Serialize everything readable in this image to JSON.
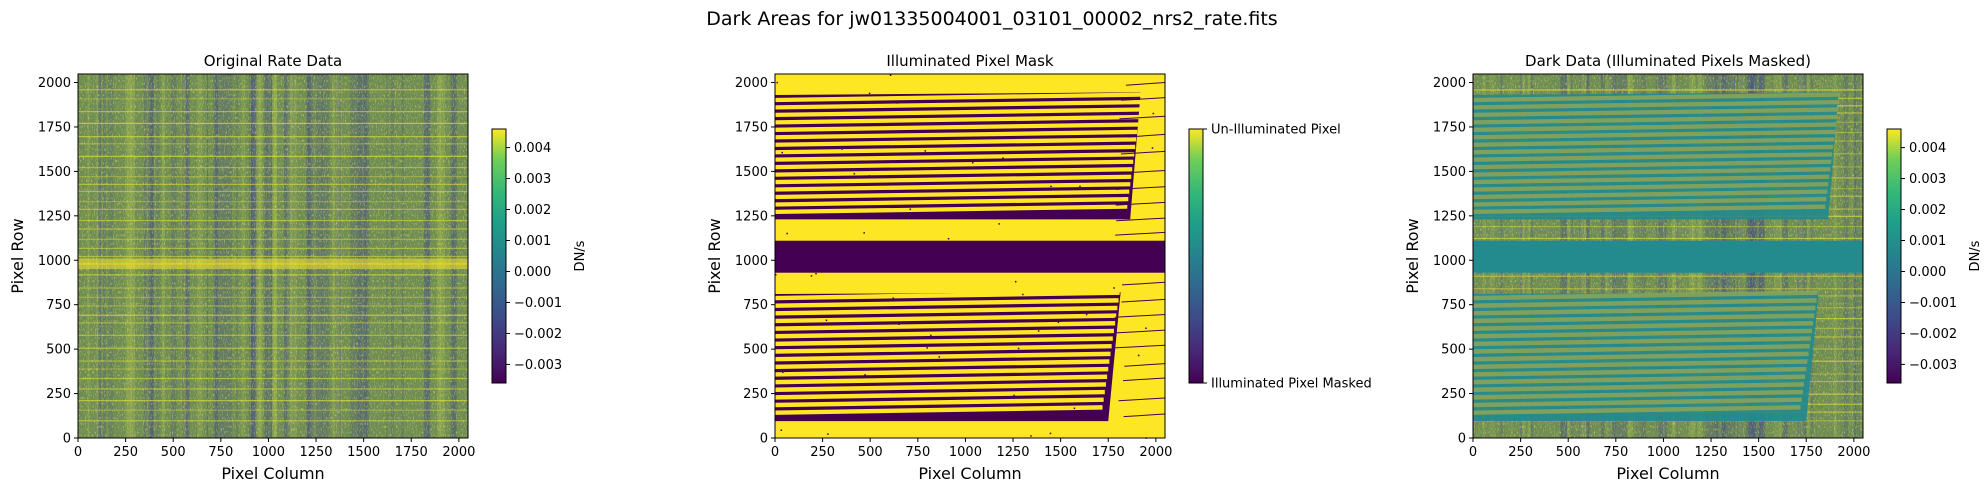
{
  "figure": {
    "title": "Dark Areas for jw01335004001_03101_00002_nrs2_rate.fits"
  },
  "chart_data": [
    {
      "type": "heatmap",
      "title": "Original Rate Data",
      "xlabel": "Pixel Column",
      "ylabel": "Pixel Row",
      "xlim": [
        0,
        2048
      ],
      "ylim": [
        0,
        2048
      ],
      "xticks": [
        0,
        250,
        500,
        750,
        1000,
        1250,
        1500,
        1750,
        2000
      ],
      "yticks": [
        0,
        250,
        500,
        750,
        1000,
        1250,
        1500,
        1750,
        2000
      ],
      "colormap": "viridis",
      "colorbar": {
        "label": "DN/s",
        "range": [
          -0.0036,
          0.0046
        ],
        "ticks": [
          0.004,
          0.003,
          0.002,
          0.001,
          0.0,
          -0.001,
          -0.002,
          -0.003
        ],
        "tick_labels": [
          "0.004",
          "0.003",
          "0.002",
          "0.001",
          "0.000",
          "−0.001",
          "−0.002",
          "−0.003"
        ]
      }
    },
    {
      "type": "heatmap",
      "title": "Illuminated Pixel Mask",
      "xlabel": "Pixel Column",
      "ylabel": "Pixel Row",
      "xlim": [
        0,
        2048
      ],
      "ylim": [
        0,
        2048
      ],
      "xticks": [
        0,
        250,
        500,
        750,
        1000,
        1250,
        1500,
        1750,
        2000
      ],
      "yticks": [
        0,
        250,
        500,
        750,
        1000,
        1250,
        1500,
        1750,
        2000
      ],
      "colormap": "viridis",
      "colorbar": {
        "label": "",
        "range": [
          0,
          1
        ],
        "tick_labels": [
          "Un-Illuminated Pixel",
          "Illuminated Pixel Masked"
        ]
      }
    },
    {
      "type": "heatmap",
      "title": "Dark Data (Illuminated Pixels Masked)",
      "xlabel": "Pixel Column",
      "ylabel": "Pixel Row",
      "xlim": [
        0,
        2048
      ],
      "ylim": [
        0,
        2048
      ],
      "xticks": [
        0,
        250,
        500,
        750,
        1000,
        1250,
        1500,
        1750,
        2000
      ],
      "yticks": [
        0,
        250,
        500,
        750,
        1000,
        1250,
        1500,
        1750,
        2000
      ],
      "colormap": "viridis",
      "colorbar": {
        "label": "DN/s",
        "range": [
          -0.0036,
          0.0046
        ],
        "ticks": [
          0.004,
          0.003,
          0.002,
          0.001,
          0.0,
          -0.001,
          -0.002,
          -0.003
        ],
        "tick_labels": [
          "0.004",
          "0.003",
          "0.002",
          "0.001",
          "0.000",
          "−0.001",
          "−0.002",
          "−0.003"
        ]
      }
    }
  ],
  "colors": {
    "viridis_dark": "#440154",
    "viridis_teal": "#21918c",
    "viridis_yellow": "#fde725",
    "masked_fill": "#238a8d"
  }
}
